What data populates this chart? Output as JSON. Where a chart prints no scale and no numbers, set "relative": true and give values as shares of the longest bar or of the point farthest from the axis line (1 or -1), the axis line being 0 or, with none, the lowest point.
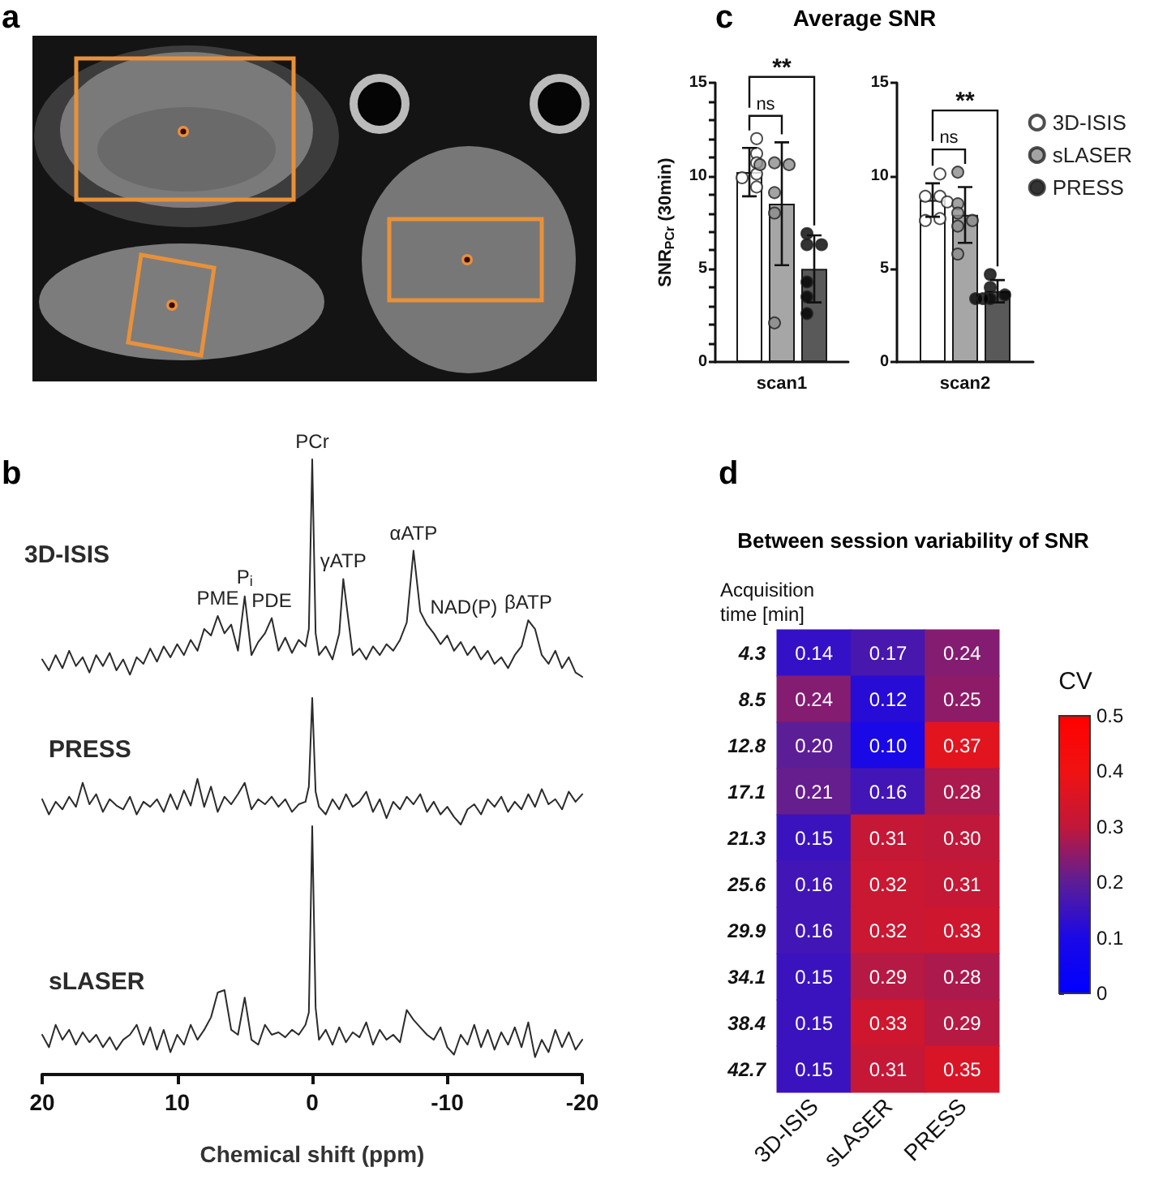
{
  "chart_data": [
    {
      "type": "other",
      "annotations": [
        "a"
      ]
    },
    {
      "type": "line",
      "relative": true,
      "tick_labels": false,
      "xlim": [
        20,
        -20
      ],
      "annotations": [
        "b",
        {
          "text": "PCr",
          "x": 0,
          "y": 1
        },
        {
          "text": "PME",
          "x": 7,
          "y": 0.28
        },
        {
          "text": "P$_{i}$",
          "x": 5,
          "y": 0.37
        },
        {
          "text": "PDE",
          "x": 3,
          "y": 0.27
        },
        {
          "text": "γATP",
          "x": -2.3,
          "y": 0.45
        },
        {
          "text": "αATP",
          "x": -7.5,
          "y": 0.58
        },
        {
          "text": "NAD(P)",
          "x": -8.5,
          "y": 0.24
        },
        {
          "text": "βATP",
          "x": -16,
          "y": 0.26
        }
      ],
      "x": [
        20,
        19.5,
        19,
        18.5,
        18,
        17.5,
        17,
        16.5,
        16,
        15.5,
        15,
        14.5,
        14,
        13.5,
        13,
        12.5,
        12,
        11.5,
        11,
        10.5,
        10,
        9.5,
        9,
        8.5,
        8,
        7.5,
        7,
        6.5,
        6,
        5.5,
        5,
        4.5,
        4,
        3.5,
        3,
        2.5,
        2,
        1.5,
        1,
        0.5,
        0.25,
        0,
        -0.25,
        -0.5,
        -1,
        -1.5,
        -2,
        -2.3,
        -3,
        -3.5,
        -4,
        -4.5,
        -5,
        -5.5,
        -6,
        -6.5,
        -7,
        -7.5,
        -8,
        -8.5,
        -9,
        -9.5,
        -10,
        -10.5,
        -11,
        -11.5,
        -12,
        -12.5,
        -13,
        -13.5,
        -14,
        -14.5,
        -15,
        -15.5,
        -16,
        -16.5,
        -17,
        -17.5,
        -18,
        -18.5,
        -19,
        -19.5,
        -20
      ],
      "series": [
        {
          "name": "3D-ISIS",
          "color": "#2b2b2b",
          "values": [
            0.08,
            0.03,
            0.1,
            0.04,
            0.12,
            0.05,
            0.09,
            0.02,
            0.1,
            0.05,
            0.11,
            0.03,
            0.08,
            0.01,
            0.09,
            0.06,
            0.13,
            0.07,
            0.14,
            0.09,
            0.15,
            0.1,
            0.17,
            0.12,
            0.22,
            0.19,
            0.28,
            0.2,
            0.24,
            0.12,
            0.37,
            0.1,
            0.16,
            0.2,
            0.27,
            0.12,
            0.18,
            0.11,
            0.17,
            0.14,
            0.22,
            1,
            0.2,
            0.1,
            0.14,
            0.08,
            0.2,
            0.45,
            0.1,
            0.13,
            0.08,
            0.14,
            0.1,
            0.15,
            0.12,
            0.17,
            0.25,
            0.58,
            0.3,
            0.24,
            0.2,
            0.15,
            0.19,
            0.12,
            0.16,
            0.1,
            0.14,
            0.08,
            0.12,
            0.06,
            0.09,
            0.04,
            0.1,
            0.14,
            0.26,
            0.22,
            0.1,
            0.06,
            0.12,
            0.04,
            0.09,
            0.02,
            0
          ]
        }
      ]
    },
    {
      "type": "line",
      "relative": true,
      "tick_labels": false,
      "xlim": [
        20,
        -20
      ],
      "x": [
        20,
        19.5,
        19,
        18.5,
        18,
        17.5,
        17,
        16.5,
        16,
        15.5,
        15,
        14.5,
        14,
        13.5,
        13,
        12.5,
        12,
        11.5,
        11,
        10.5,
        10,
        9.5,
        9,
        8.5,
        8,
        7.5,
        7,
        6.5,
        6,
        5.5,
        5,
        4.5,
        4,
        3.5,
        3,
        2.5,
        2,
        1.5,
        1,
        0.5,
        0.25,
        0,
        -0.25,
        -0.5,
        -1,
        -1.5,
        -2,
        -2.5,
        -3,
        -3.5,
        -4,
        -4.5,
        -5,
        -5.5,
        -6,
        -6.5,
        -7,
        -7.5,
        -8,
        -8.5,
        -9,
        -9.5,
        -10,
        -10.5,
        -11,
        -11.5,
        -12,
        -12.5,
        -13,
        -13.5,
        -14,
        -14.5,
        -15,
        -15.5,
        -16,
        -16.5,
        -17,
        -17.5,
        -18,
        -18.5,
        -19,
        -19.5,
        -20
      ],
      "series": [
        {
          "name": "PRESS",
          "color": "#2b2b2b",
          "values": [
            0.2,
            0.08,
            0.18,
            0.12,
            0.22,
            0.14,
            0.33,
            0.16,
            0.24,
            0.1,
            0.2,
            0.15,
            0.12,
            0.22,
            0.08,
            0.18,
            0.14,
            0.2,
            0.1,
            0.24,
            0.12,
            0.27,
            0.15,
            0.36,
            0.14,
            0.3,
            0.1,
            0.22,
            0.16,
            0.24,
            0.33,
            0.12,
            0.2,
            0.16,
            0.22,
            0.14,
            0.2,
            0.1,
            0.16,
            0.18,
            0.3,
            1,
            0.26,
            0.14,
            0.08,
            0.2,
            0.12,
            0.24,
            0.14,
            0.18,
            0.26,
            0.1,
            0.2,
            0.05,
            0.18,
            0.12,
            0.22,
            0.16,
            0.24,
            0.1,
            0.18,
            0.08,
            0.14,
            0.06,
            0,
            0.12,
            0.16,
            0.08,
            0.2,
            0.14,
            0.22,
            0.1,
            0.18,
            0.12,
            0.24,
            0.14,
            0.28,
            0.16,
            0.2,
            0.12,
            0.26,
            0.18,
            0.24
          ]
        }
      ]
    },
    {
      "type": "line",
      "relative": true,
      "xlim": [
        20,
        -20
      ],
      "xticks": [
        20,
        10,
        0,
        -10,
        -20
      ],
      "xlabel": "Chemical shift (ppm)",
      "x": [
        20,
        19.5,
        19,
        18.5,
        18,
        17.5,
        17,
        16.5,
        16,
        15.5,
        15,
        14.5,
        14,
        13.5,
        13,
        12.5,
        12,
        11.5,
        11,
        10.5,
        10,
        9.5,
        9,
        8.5,
        8,
        7.5,
        7,
        6.5,
        6,
        5.5,
        5,
        4.5,
        4,
        3.5,
        3,
        2.5,
        2,
        1.5,
        1,
        0.5,
        0.25,
        0,
        -0.25,
        -0.5,
        -1,
        -1.5,
        -2,
        -2.5,
        -3,
        -3.5,
        -4,
        -4.5,
        -5,
        -5.5,
        -6,
        -6.5,
        -7,
        -7.5,
        -8,
        -8.5,
        -9,
        -9.5,
        -10,
        -10.5,
        -11,
        -11.5,
        -12,
        -12.5,
        -13,
        -13.5,
        -14,
        -14.5,
        -15,
        -15.5,
        -16,
        -16.5,
        -17,
        -17.5,
        -18,
        -18.5,
        -19,
        -19.5,
        -20
      ],
      "series": [
        {
          "name": "sLASER",
          "color": "#2b2b2b",
          "values": [
            0.16,
            0.11,
            0.2,
            0.14,
            0.18,
            0.12,
            0.17,
            0.13,
            0.16,
            0.11,
            0.15,
            0.1,
            0.14,
            0.16,
            0.2,
            0.12,
            0.19,
            0.1,
            0.18,
            0.09,
            0.16,
            0.12,
            0.2,
            0.14,
            0.18,
            0.23,
            0.33,
            0.34,
            0.18,
            0.16,
            0.31,
            0.14,
            0.12,
            0.2,
            0.16,
            0.17,
            0.15,
            0.18,
            0.16,
            0.2,
            0.25,
            1,
            0.27,
            0.14,
            0.18,
            0.12,
            0.19,
            0.13,
            0.17,
            0.15,
            0.21,
            0.12,
            0.18,
            0.14,
            0.16,
            0.13,
            0.26,
            0.22,
            0.19,
            0.16,
            0.14,
            0.19,
            0.11,
            0.08,
            0.16,
            0.12,
            0.2,
            0.11,
            0.18,
            0.1,
            0.17,
            0.12,
            0.19,
            0.11,
            0.21,
            0.07,
            0.14,
            0.09,
            0.18,
            0.11,
            0.17,
            0.1,
            0.14
          ]
        }
      ]
    },
    {
      "type": "bar",
      "title": "Average SNR",
      "ylabel": "SNR$_{PCr}$ (30min)",
      "annotations": [
        "c",
        "ns",
        "**"
      ],
      "categories": [
        "scan1"
      ],
      "ylim": [
        0,
        15
      ],
      "yticks": [
        0,
        {
          "value": 1,
          "label": null
        },
        {
          "value": 2,
          "label": null
        },
        {
          "value": 3,
          "label": null
        },
        {
          "value": 4,
          "label": null
        },
        5,
        {
          "value": 6,
          "label": null
        },
        {
          "value": 7,
          "label": null
        },
        {
          "value": 8,
          "label": null
        },
        {
          "value": 9,
          "label": null
        },
        10,
        {
          "value": 11,
          "label": null
        },
        {
          "value": 12,
          "label": null
        },
        {
          "value": 13,
          "label": null
        },
        {
          "value": 14,
          "label": null
        },
        15
      ],
      "marker": "circle",
      "series": [
        {
          "color": "#ffffff",
          "values": [
            10.2
          ],
          "errors": [
            1.3
          ]
        },
        {
          "color": "#a6a6a6",
          "values": [
            8.5
          ],
          "errors": [
            3.3
          ]
        },
        {
          "color": "#595959",
          "values": [
            5.0
          ],
          "errors": [
            1.8
          ]
        },
        {
          "type": "scatter",
          "color": "#ffffff",
          "x": [
            "scan1",
            "scan1",
            "scan1",
            "scan1",
            "scan1",
            "scan1"
          ],
          "values": [
            12.0,
            11.2,
            10.7,
            10.1,
            9.9,
            9.4
          ]
        },
        {
          "type": "scatter",
          "color": "#8c8c8c",
          "x": [
            "scan1",
            "scan1",
            "scan1",
            "scan1",
            "scan1",
            "scan1"
          ],
          "values": [
            10.7,
            10.6,
            10.6,
            9.1,
            8.0,
            2.1
          ]
        },
        {
          "type": "scatter",
          "color": "#000000",
          "x": [
            "scan1",
            "scan1",
            "scan1",
            "scan1",
            "scan1",
            "scan1"
          ],
          "values": [
            6.9,
            6.3,
            6.3,
            4.3,
            3.5,
            2.6
          ]
        }
      ]
    },
    {
      "type": "bar",
      "annotations": [
        "ns",
        "**"
      ],
      "categories": [
        "scan2"
      ],
      "ylim": [
        0,
        15
      ],
      "yticks": [
        0,
        5,
        10,
        15
      ],
      "marker": "circle",
      "legend": "top right",
      "series": [
        {
          "color": "#ffffff",
          "values": [
            8.7
          ],
          "errors": [
            0.9
          ]
        },
        {
          "color": "#a6a6a6",
          "values": [
            7.9
          ],
          "errors": [
            1.5
          ]
        },
        {
          "color": "#595959",
          "values": [
            3.8
          ],
          "errors": [
            0.6
          ]
        },
        {
          "type": "scatter",
          "name": "3D-ISIS",
          "color": "#ffffff",
          "x": [
            "scan2",
            "scan2",
            "scan2",
            "scan2",
            "scan2",
            "scan2"
          ],
          "values": [
            10.1,
            8.9,
            8.9,
            8.6,
            7.7,
            7.6
          ]
        },
        {
          "type": "scatter",
          "name": "sLASER",
          "color": "#8c8c8c",
          "x": [
            "scan2",
            "scan2",
            "scan2",
            "scan2",
            "scan2",
            "scan2"
          ],
          "values": [
            10.2,
            8.5,
            8.0,
            7.6,
            7.3,
            5.8
          ]
        },
        {
          "type": "scatter",
          "name": "PRESS",
          "color": "#000000",
          "x": [
            "scan2",
            "scan2",
            "scan2",
            "scan2",
            "scan2",
            "scan2"
          ],
          "values": [
            4.7,
            4.0,
            3.6,
            3.4,
            3.4,
            3.4
          ]
        }
      ]
    },
    {
      "type": "heatmap",
      "title": "Between session variability of SNR",
      "ylabel": "Acquisition time [min]",
      "clabel": "CV",
      "annotations": [
        "d"
      ],
      "categories": [
        "3D-ISIS",
        "sLASER",
        "PRESS"
      ],
      "y_categories": [
        "4.3",
        "8.5",
        "12.8",
        "17.1",
        "21.3",
        "25.6",
        "29.9",
        "34.1",
        "38.4",
        "42.7"
      ],
      "cells": [
        [
          0.14,
          0.17,
          0.24
        ],
        [
          0.24,
          0.12,
          0.25
        ],
        [
          0.2,
          0.1,
          0.37
        ],
        [
          0.21,
          0.16,
          0.28
        ],
        [
          0.15,
          0.31,
          0.3
        ],
        [
          0.16,
          0.32,
          0.31
        ],
        [
          0.16,
          0.32,
          0.33
        ],
        [
          0.15,
          0.29,
          0.28
        ],
        [
          0.15,
          0.33,
          0.29
        ],
        [
          0.15,
          0.31,
          0.35
        ]
      ],
      "cell_labels": [
        [
          "0.14",
          "0.17",
          "0.24"
        ],
        [
          "0.24",
          "0.12",
          "0.25"
        ],
        [
          "0.20",
          "0.10",
          "0.37"
        ],
        [
          "0.21",
          "0.16",
          "0.28"
        ],
        [
          "0.15",
          "0.31",
          "0.30"
        ],
        [
          "0.16",
          "0.32",
          "0.31"
        ],
        [
          "0.16",
          "0.32",
          "0.33"
        ],
        [
          "0.15",
          "0.29",
          "0.28"
        ],
        [
          "0.15",
          "0.33",
          "0.29"
        ],
        [
          "0.15",
          "0.31",
          "0.35"
        ]
      ],
      "clim": [
        0,
        0.5
      ],
      "cticks": [
        0,
        0.1,
        0.2,
        0.3,
        0.4,
        0.5
      ]
    }
  ]
}
